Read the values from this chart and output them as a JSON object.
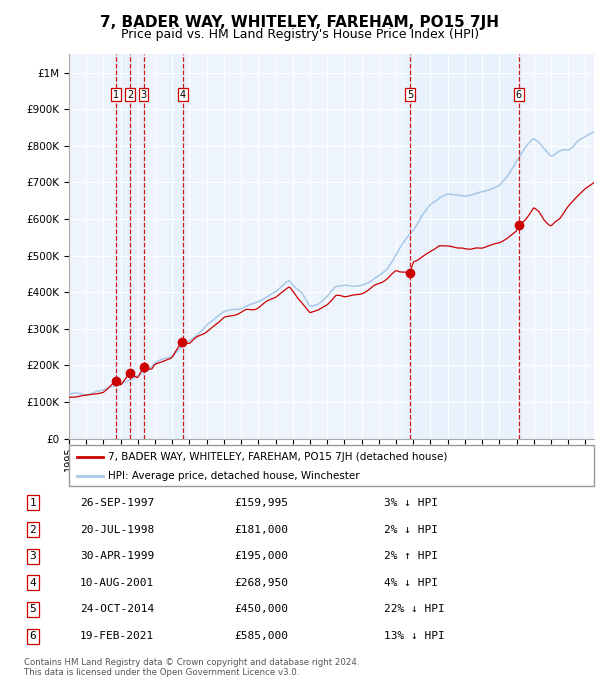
{
  "title": "7, BADER WAY, WHITELEY, FAREHAM, PO15 7JH",
  "subtitle": "Price paid vs. HM Land Registry's House Price Index (HPI)",
  "title_fontsize": 11,
  "subtitle_fontsize": 9,
  "ylim": [
    0,
    1050000
  ],
  "xlim_start": 1995.0,
  "xlim_end": 2025.5,
  "yticks": [
    0,
    100000,
    200000,
    300000,
    400000,
    500000,
    600000,
    700000,
    800000,
    900000,
    1000000
  ],
  "ytick_labels": [
    "£0",
    "£100K",
    "£200K",
    "£300K",
    "£400K",
    "£500K",
    "£600K",
    "£700K",
    "£800K",
    "£900K",
    "£1M"
  ],
  "xticks": [
    1995,
    1996,
    1997,
    1998,
    1999,
    2000,
    2001,
    2002,
    2003,
    2004,
    2005,
    2006,
    2007,
    2008,
    2009,
    2010,
    2011,
    2012,
    2013,
    2014,
    2015,
    2016,
    2017,
    2018,
    2019,
    2020,
    2021,
    2022,
    2023,
    2024,
    2025
  ],
  "hpi_color": "#a8c8e8",
  "price_color": "#cc0000",
  "vline_color": "#cc0000",
  "shade_color": "#ddeeff",
  "background_color": "#eef4fb",
  "grid_color": "#ffffff",
  "transactions": [
    {
      "label": "1",
      "date": 1997.73,
      "price": 159995
    },
    {
      "label": "2",
      "date": 1998.55,
      "price": 181000
    },
    {
      "label": "3",
      "date": 1999.33,
      "price": 195000
    },
    {
      "label": "4",
      "date": 2001.61,
      "price": 268950
    },
    {
      "label": "5",
      "date": 2014.82,
      "price": 450000
    },
    {
      "label": "6",
      "date": 2021.13,
      "price": 585000
    }
  ],
  "legend_line1": "7, BADER WAY, WHITELEY, FAREHAM, PO15 7JH (detached house)",
  "legend_line2": "HPI: Average price, detached house, Winchester",
  "footer_line1": "Contains HM Land Registry data © Crown copyright and database right 2024.",
  "footer_line2": "This data is licensed under the Open Government Licence v3.0.",
  "table_rows": [
    {
      "num": "1",
      "date": "26-SEP-1997",
      "price": "£159,995",
      "hpi": "3% ↓ HPI"
    },
    {
      "num": "2",
      "date": "20-JUL-1998",
      "price": "£181,000",
      "hpi": "2% ↓ HPI"
    },
    {
      "num": "3",
      "date": "30-APR-1999",
      "price": "£195,000",
      "hpi": "2% ↑ HPI"
    },
    {
      "num": "4",
      "date": "10-AUG-2001",
      "price": "£268,950",
      "hpi": "4% ↓ HPI"
    },
    {
      "num": "5",
      "date": "24-OCT-2014",
      "price": "£450,000",
      "hpi": "22% ↓ HPI"
    },
    {
      "num": "6",
      "date": "19-FEB-2021",
      "price": "£585,000",
      "hpi": "13% ↓ HPI"
    }
  ]
}
